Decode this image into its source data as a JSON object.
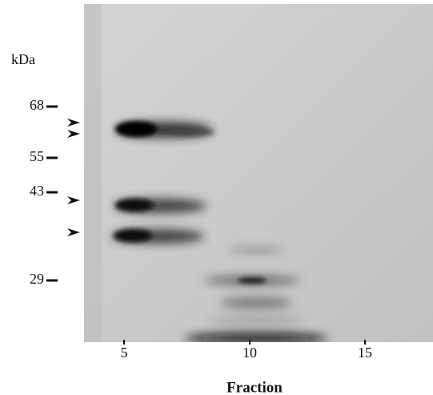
{
  "unit_label": "kDa",
  "markers": [
    68,
    55,
    43,
    29
  ],
  "fractions": [
    5,
    10,
    15
  ],
  "x_axis_title": "Fraction"
}
